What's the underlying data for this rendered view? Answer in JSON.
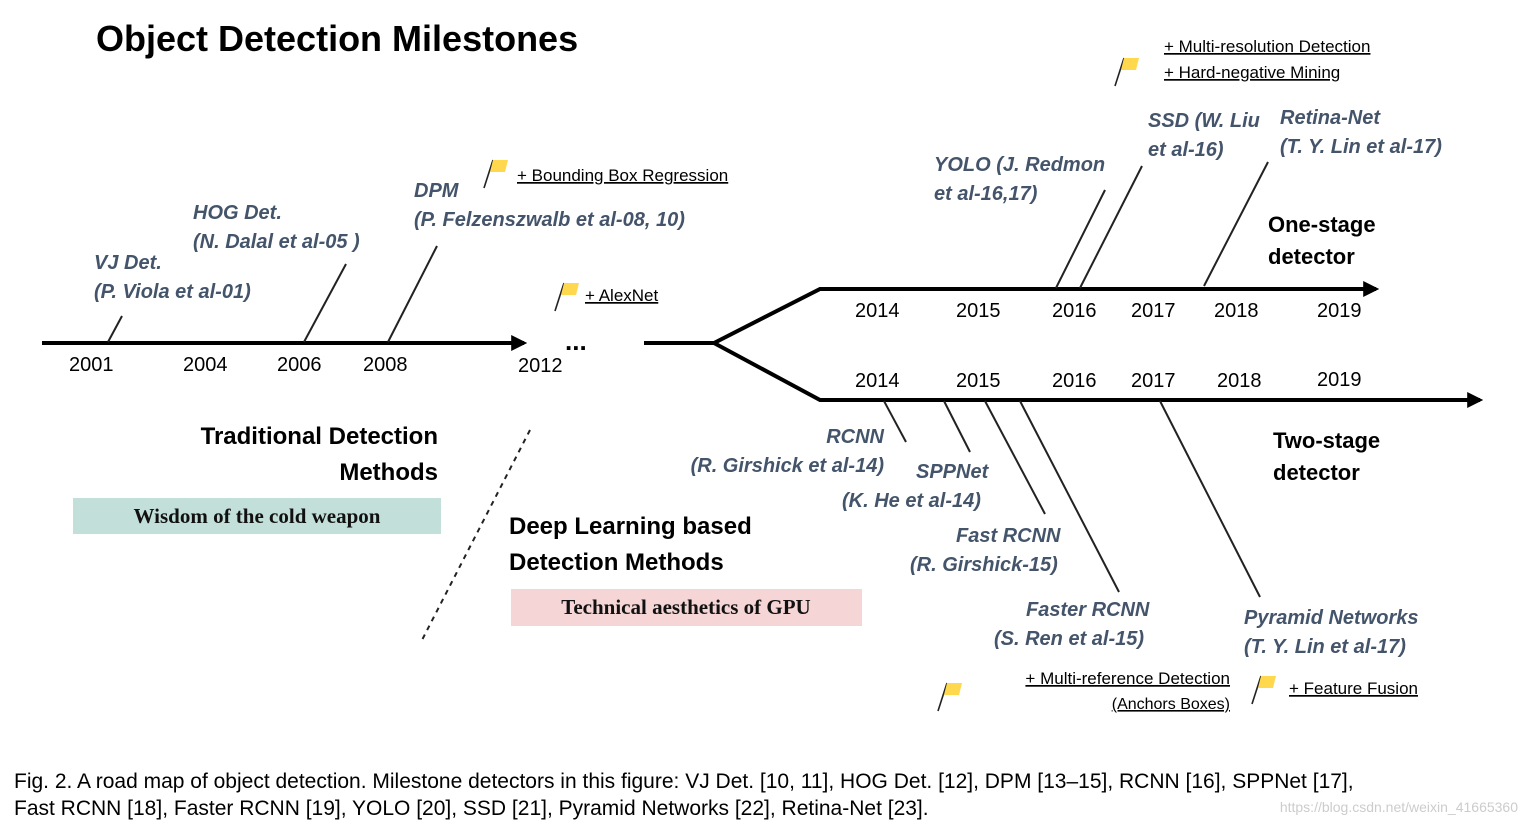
{
  "title": "Object Detection Milestones",
  "traditional_timeline": {
    "years": [
      "2001",
      "2004",
      "2006",
      "2008",
      "2012"
    ],
    "ellipsis": "..."
  },
  "one_stage_years": [
    "2014",
    "2015",
    "2016",
    "2017",
    "2018",
    "2019"
  ],
  "two_stage_years": [
    "2014",
    "2015",
    "2016",
    "2017",
    "2018",
    "2019"
  ],
  "one_stage_label": [
    "One-stage",
    "detector"
  ],
  "two_stage_label": [
    "Two-stage",
    "detector"
  ],
  "detectors": {
    "vj": [
      "VJ Det.",
      "(P. Viola et al-01)"
    ],
    "hog": [
      "HOG Det.",
      "(N. Dalal et al-05 )"
    ],
    "dpm": [
      "DPM",
      "(P. Felzenszwalb et al-08, 10)"
    ],
    "yolo": [
      "YOLO (J. Redmon",
      "et al-16,17)"
    ],
    "ssd": [
      "SSD (W. Liu",
      "et al-16)"
    ],
    "retina": [
      "Retina-Net",
      "(T. Y. Lin et al-17)"
    ],
    "rcnn": [
      "RCNN",
      "(R. Girshick et al-14)"
    ],
    "sppnet": [
      "SPPNet",
      "(K. He et al-14)"
    ],
    "fast_rcnn": [
      "Fast RCNN",
      "(R. Girshick-15)"
    ],
    "faster_rcnn": [
      "Faster RCNN",
      "(S. Ren et al-15)"
    ],
    "fpn": [
      "Pyramid Networks",
      "(T. Y. Lin et al-17)"
    ]
  },
  "features": {
    "bbox_regression": "+ Bounding Box Regression",
    "alexnet": "+ AlexNet",
    "multi_resolution": "+ Multi-resolution Detection",
    "hard_negative": "+ Hard-negative Mining",
    "multi_reference": "+ Multi-reference Detection",
    "anchor_boxes": "(Anchors Boxes)",
    "feature_fusion": "+ Feature Fusion"
  },
  "categories": {
    "traditional": [
      "Traditional Detection",
      "Methods"
    ],
    "deep": [
      "Deep Learning based",
      "Detection Methods"
    ]
  },
  "badges": {
    "traditional": "Wisdom of the cold weapon",
    "deep": "Technical aesthetics of GPU"
  },
  "colors": {
    "detector_text": "#44546a",
    "badge_traditional": "#c2e0d9",
    "badge_deep": "#f5d5d5",
    "flag": "#ffd84d"
  },
  "caption": [
    "Fig. 2.  A road map of object detection. Milestone detectors in this figure: VJ Det. [10, 11], HOG Det. [12], DPM [13–15], RCNN [16], SPPNet [17],",
    "Fast RCNN [18], Faster RCNN [19], YOLO [20], SSD [21], Pyramid Networks [22], Retina-Net [23]."
  ],
  "watermark": "https://blog.csdn.net/weixin_41665360"
}
